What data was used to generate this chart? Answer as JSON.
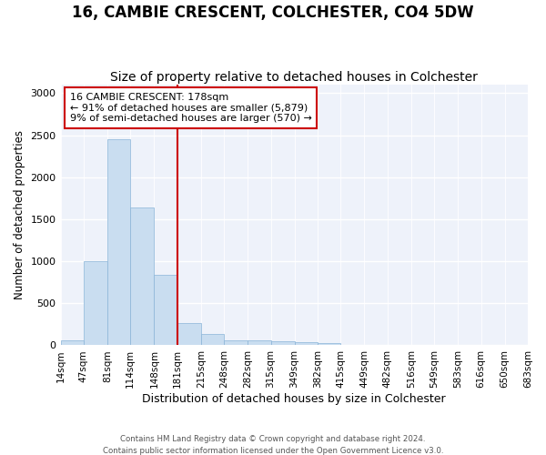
{
  "title": "16, CAMBIE CRESCENT, COLCHESTER, CO4 5DW",
  "subtitle": "Size of property relative to detached houses in Colchester",
  "xlabel": "Distribution of detached houses by size in Colchester",
  "ylabel": "Number of detached properties",
  "footer_line1": "Contains HM Land Registry data © Crown copyright and database right 2024.",
  "footer_line2": "Contains public sector information licensed under the Open Government Licence v3.0.",
  "bar_edges": [
    14,
    47,
    81,
    114,
    148,
    181,
    215,
    248,
    282,
    315,
    349,
    382,
    415,
    449,
    482,
    516,
    549,
    583,
    616,
    650,
    683
  ],
  "bar_heights": [
    60,
    1000,
    2450,
    1640,
    840,
    270,
    140,
    60,
    55,
    45,
    35,
    30,
    5,
    0,
    0,
    0,
    0,
    0,
    0,
    0
  ],
  "bar_color": "#c9ddf0",
  "bar_edge_color": "#8ab4d8",
  "bar_linewidth": 0.5,
  "vline_x": 181,
  "vline_color": "#cc0000",
  "vline_linewidth": 1.5,
  "annotation_line1": "16 CAMBIE CRESCENT: 178sqm",
  "annotation_line2": "← 91% of detached houses are smaller (5,879)",
  "annotation_line3": "9% of semi-detached houses are larger (570) →",
  "annotation_box_color": "#ffffff",
  "annotation_box_edgecolor": "#cc0000",
  "annotation_fontsize": 8.0,
  "ylim": [
    0,
    3100
  ],
  "yticks": [
    0,
    500,
    1000,
    1500,
    2000,
    2500,
    3000
  ],
  "background_color": "#eef2fa",
  "title_fontsize": 12,
  "subtitle_fontsize": 10,
  "xlabel_fontsize": 9,
  "ylabel_fontsize": 8.5,
  "tick_fontsize": 7.5,
  "tick_labels": [
    "14sqm",
    "47sqm",
    "81sqm",
    "114sqm",
    "148sqm",
    "181sqm",
    "215sqm",
    "248sqm",
    "282sqm",
    "315sqm",
    "349sqm",
    "382sqm",
    "415sqm",
    "449sqm",
    "482sqm",
    "516sqm",
    "549sqm",
    "583sqm",
    "616sqm",
    "650sqm",
    "683sqm"
  ]
}
